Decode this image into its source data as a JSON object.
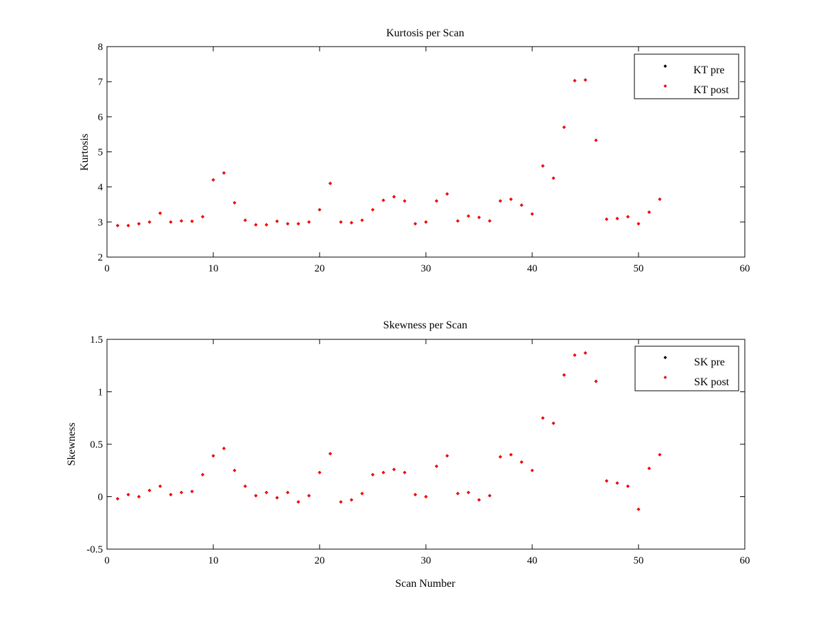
{
  "chart_data": [
    {
      "type": "scatter",
      "title": "Kurtosis per Scan",
      "xlabel": "",
      "ylabel": "Kurtosis",
      "xlim": [
        0,
        60
      ],
      "ylim": [
        2,
        8
      ],
      "xticks": [
        0,
        10,
        20,
        30,
        40,
        50,
        60
      ],
      "yticks": [
        2,
        3,
        4,
        5,
        6,
        7,
        8
      ],
      "grid": false,
      "legend_position": "top-right",
      "x": [
        1,
        2,
        3,
        4,
        5,
        6,
        7,
        8,
        9,
        10,
        11,
        12,
        13,
        14,
        15,
        16,
        17,
        18,
        19,
        20,
        21,
        22,
        23,
        24,
        25,
        26,
        27,
        28,
        29,
        30,
        31,
        32,
        33,
        34,
        35,
        36,
        37,
        38,
        39,
        40,
        41,
        42,
        43,
        44,
        45,
        46,
        47,
        48,
        49,
        50,
        51,
        52
      ],
      "series": [
        {
          "name": "KT pre",
          "color": "#000000",
          "values": [
            2.9,
            2.9,
            2.95,
            3.0,
            3.25,
            3.0,
            3.03,
            3.02,
            3.15,
            4.2,
            4.4,
            3.55,
            3.05,
            2.92,
            2.92,
            3.02,
            2.95,
            2.95,
            3.0,
            3.35,
            4.1,
            3.0,
            2.98,
            3.05,
            3.35,
            3.62,
            3.72,
            3.6,
            2.95,
            3.0,
            3.6,
            3.8,
            3.03,
            3.17,
            3.13,
            3.03,
            3.6,
            3.65,
            3.48,
            3.23,
            4.6,
            4.25,
            5.7,
            7.03,
            7.05,
            5.33,
            3.08,
            3.1,
            3.15,
            2.95,
            3.28,
            3.65
          ]
        },
        {
          "name": "KT post",
          "color": "#ff0000",
          "values": [
            2.9,
            2.9,
            2.95,
            3.0,
            3.25,
            3.0,
            3.03,
            3.02,
            3.15,
            4.2,
            4.4,
            3.55,
            3.05,
            2.92,
            2.92,
            3.02,
            2.95,
            2.95,
            3.0,
            3.35,
            4.1,
            3.0,
            2.98,
            3.05,
            3.35,
            3.62,
            3.72,
            3.6,
            2.95,
            3.0,
            3.6,
            3.8,
            3.03,
            3.17,
            3.13,
            3.03,
            3.6,
            3.65,
            3.48,
            3.23,
            4.6,
            4.25,
            5.7,
            7.03,
            7.05,
            5.33,
            3.08,
            3.1,
            3.15,
            2.95,
            3.28,
            3.65
          ]
        }
      ]
    },
    {
      "type": "scatter",
      "title": "Skewness per Scan",
      "xlabel": "Scan Number",
      "ylabel": "Skewness",
      "xlim": [
        0,
        60
      ],
      "ylim": [
        -0.5,
        1.5
      ],
      "xticks": [
        0,
        10,
        20,
        30,
        40,
        50,
        60
      ],
      "yticks": [
        -0.5,
        0,
        0.5,
        1,
        1.5
      ],
      "grid": false,
      "legend_position": "top-right",
      "x": [
        1,
        2,
        3,
        4,
        5,
        6,
        7,
        8,
        9,
        10,
        11,
        12,
        13,
        14,
        15,
        16,
        17,
        18,
        19,
        20,
        21,
        22,
        23,
        24,
        25,
        26,
        27,
        28,
        29,
        30,
        31,
        32,
        33,
        34,
        35,
        36,
        37,
        38,
        39,
        40,
        41,
        42,
        43,
        44,
        45,
        46,
        47,
        48,
        49,
        50,
        51,
        52
      ],
      "series": [
        {
          "name": "SK pre",
          "color": "#000000",
          "values": [
            -0.02,
            0.02,
            0.0,
            0.06,
            0.1,
            0.02,
            0.04,
            0.05,
            0.21,
            0.39,
            0.46,
            0.25,
            0.1,
            0.01,
            0.04,
            -0.01,
            0.04,
            -0.05,
            0.01,
            0.23,
            0.41,
            -0.05,
            -0.03,
            0.03,
            0.21,
            0.23,
            0.26,
            0.23,
            0.02,
            0.0,
            0.29,
            0.39,
            0.03,
            0.04,
            -0.03,
            0.01,
            0.38,
            0.4,
            0.33,
            0.25,
            0.75,
            0.7,
            1.16,
            1.35,
            1.37,
            1.1,
            0.15,
            0.13,
            0.1,
            -0.12,
            0.27,
            0.4
          ]
        },
        {
          "name": "SK post",
          "color": "#ff0000",
          "values": [
            -0.02,
            0.02,
            0.0,
            0.06,
            0.1,
            0.02,
            0.04,
            0.05,
            0.21,
            0.39,
            0.46,
            0.25,
            0.1,
            0.01,
            0.04,
            -0.01,
            0.04,
            -0.05,
            0.01,
            0.23,
            0.41,
            -0.05,
            -0.03,
            0.03,
            0.21,
            0.23,
            0.26,
            0.23,
            0.02,
            0.0,
            0.29,
            0.39,
            0.03,
            0.04,
            -0.03,
            0.01,
            0.38,
            0.4,
            0.33,
            0.25,
            0.75,
            0.7,
            1.16,
            1.35,
            1.37,
            1.1,
            0.15,
            0.13,
            0.1,
            -0.12,
            0.27,
            0.4
          ]
        }
      ]
    }
  ]
}
